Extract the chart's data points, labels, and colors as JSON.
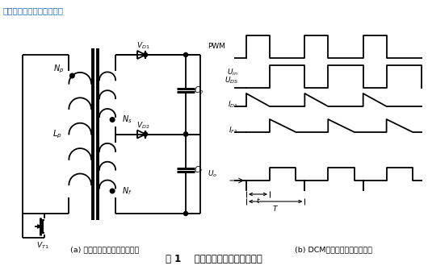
{
  "title_top": "隔离电源示意图如图所示。",
  "caption_a": "(a) 反激式变压器的工作原理图",
  "caption_b": "(b) DCM模式下电压、电流波形",
  "figure_caption": "图 1    反激式变压器的工作原理图",
  "bg_color": "#ffffff",
  "line_color": "#000000",
  "text_color": "#000000",
  "title_color": "#1a6bbf",
  "lw": 1.3
}
